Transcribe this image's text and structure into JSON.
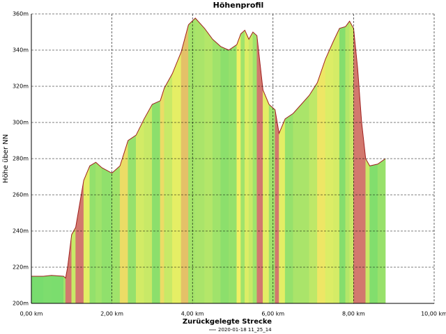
{
  "chart_data": {
    "type": "area",
    "title": "Höhenprofil",
    "x_label": "Zurückgelegte Strecke",
    "y_label": "Höhe über NN",
    "series": [
      {
        "name": "2020-01-18 11_25_14",
        "color": "#a02020",
        "x": [
          0,
          0.3,
          0.5,
          0.8,
          0.85,
          0.9,
          1.0,
          1.1,
          1.2,
          1.3,
          1.45,
          1.6,
          1.75,
          2.0,
          2.2,
          2.4,
          2.6,
          2.8,
          3.0,
          3.2,
          3.3,
          3.5,
          3.72,
          3.9,
          4.07,
          4.3,
          4.5,
          4.7,
          4.9,
          5.1,
          5.2,
          5.3,
          5.4,
          5.5,
          5.6,
          5.75,
          5.9,
          6.05,
          6.15,
          6.3,
          6.5,
          6.7,
          6.9,
          7.1,
          7.3,
          7.5,
          7.65,
          7.8,
          7.9,
          8.0,
          8.1,
          8.2,
          8.3,
          8.4,
          8.6,
          8.79
        ],
        "values": [
          215,
          215,
          215.5,
          215,
          214,
          220,
          238,
          242,
          255,
          268,
          276,
          278,
          275,
          272,
          276,
          290,
          293,
          302,
          310,
          312,
          319,
          327,
          339,
          354,
          357.7,
          352,
          346,
          342,
          340,
          343,
          349,
          351,
          346,
          350,
          348,
          318,
          310,
          307,
          294,
          302,
          305,
          310,
          315,
          322,
          335,
          345,
          352,
          353,
          356,
          352,
          330,
          300,
          280,
          276,
          277,
          280
        ]
      }
    ],
    "xlim": [
      0,
      10
    ],
    "ylim": [
      200,
      360
    ],
    "xticks": [
      {
        "value": 0,
        "label": "0,00 km"
      },
      {
        "value": 2,
        "label": "2,00 km"
      },
      {
        "value": 4,
        "label": "4,00 km"
      },
      {
        "value": 6,
        "label": "6,00 km"
      },
      {
        "value": 8,
        "label": "8,00 km"
      },
      {
        "value": 10,
        "label": "10,00 km"
      }
    ],
    "yticks": [
      {
        "value": 200,
        "label": "200m"
      },
      {
        "value": 220,
        "label": "220m"
      },
      {
        "value": 240,
        "label": "240m"
      },
      {
        "value": 260,
        "label": "260m"
      },
      {
        "value": 280,
        "label": "280m"
      },
      {
        "value": 300,
        "label": "300m"
      },
      {
        "value": 320,
        "label": "320m"
      },
      {
        "value": 340,
        "label": "340m"
      },
      {
        "value": 360,
        "label": "360m"
      }
    ],
    "grid": true
  }
}
